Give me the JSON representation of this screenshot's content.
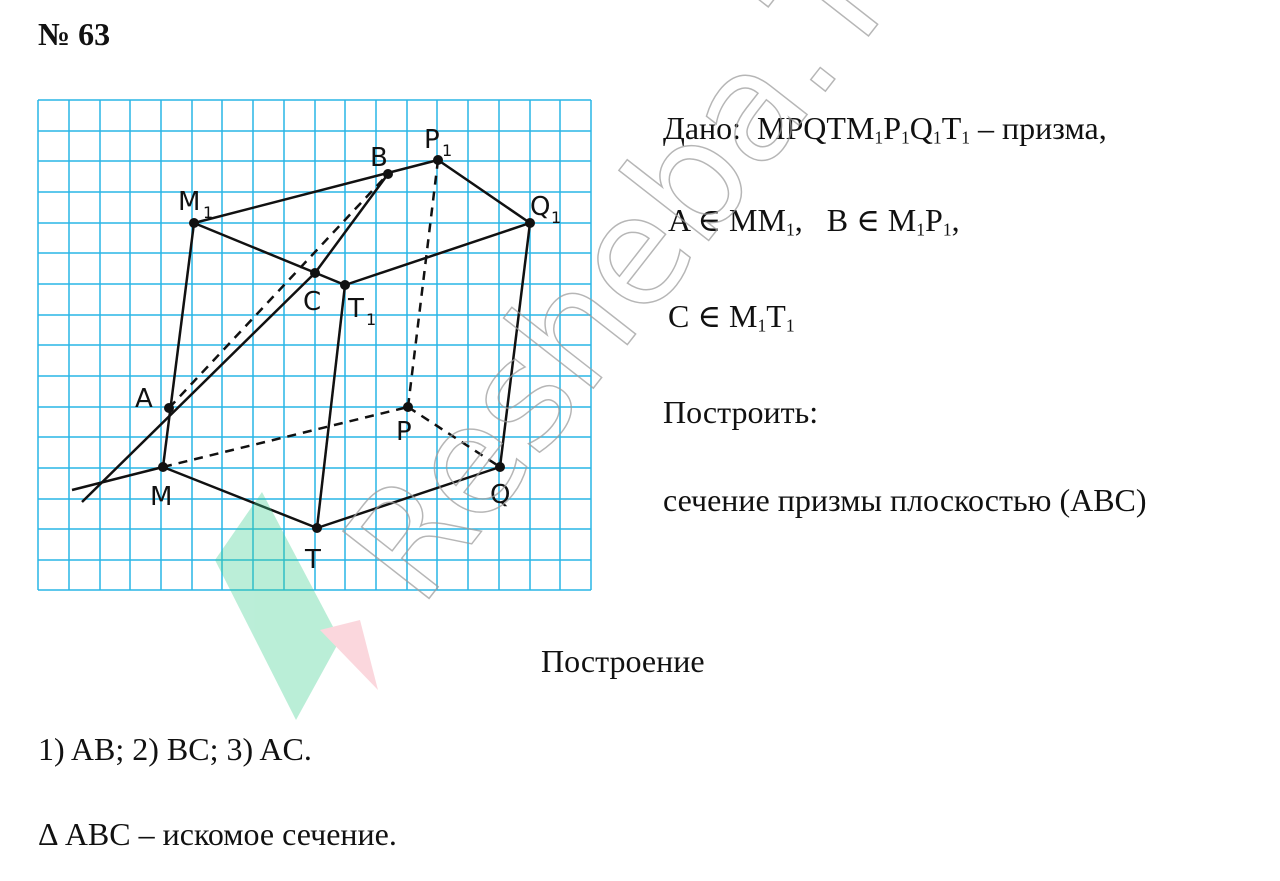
{
  "problem": {
    "number": "№ 63"
  },
  "given": {
    "label": "Дано:",
    "prism_main": "MPQTM",
    "prism_sub_labels": [
      "1",
      "1",
      "1",
      "1"
    ],
    "prism_parts": [
      "P",
      "Q",
      "T"
    ],
    "prism_tail": " – призма,",
    "a_in": "A ∈ MM",
    "b_in": "B ∈ M",
    "b_mid": "P",
    "c_in": "C ∈ M",
    "c_mid": "T",
    "sub1": "1"
  },
  "task": {
    "label": "Построить:",
    "statement": "сечение призмы плоскостью (ABC)"
  },
  "construction": {
    "heading": "Построение",
    "steps": "1) AB;   2) BC;   3) AC.",
    "result": "Δ ABC – искомое сечение."
  },
  "diagram": {
    "grid_color": "#29b6e6",
    "points": [
      {
        "name": "M",
        "label": "M"
      },
      {
        "name": "T",
        "label": "T"
      },
      {
        "name": "Q",
        "label": "Q"
      },
      {
        "name": "P",
        "label": "P"
      },
      {
        "name": "M1",
        "label": "M",
        "sub": "1"
      },
      {
        "name": "T1",
        "label": "T",
        "sub": "1"
      },
      {
        "name": "Q1",
        "label": "Q",
        "sub": "1"
      },
      {
        "name": "P1",
        "label": "P",
        "sub": "1"
      },
      {
        "name": "A",
        "label": "A"
      },
      {
        "name": "B",
        "label": "B"
      },
      {
        "name": "C",
        "label": "C"
      }
    ]
  },
  "watermark": {
    "text": "Resheba.TOP",
    "color": "#9e9e9e"
  }
}
